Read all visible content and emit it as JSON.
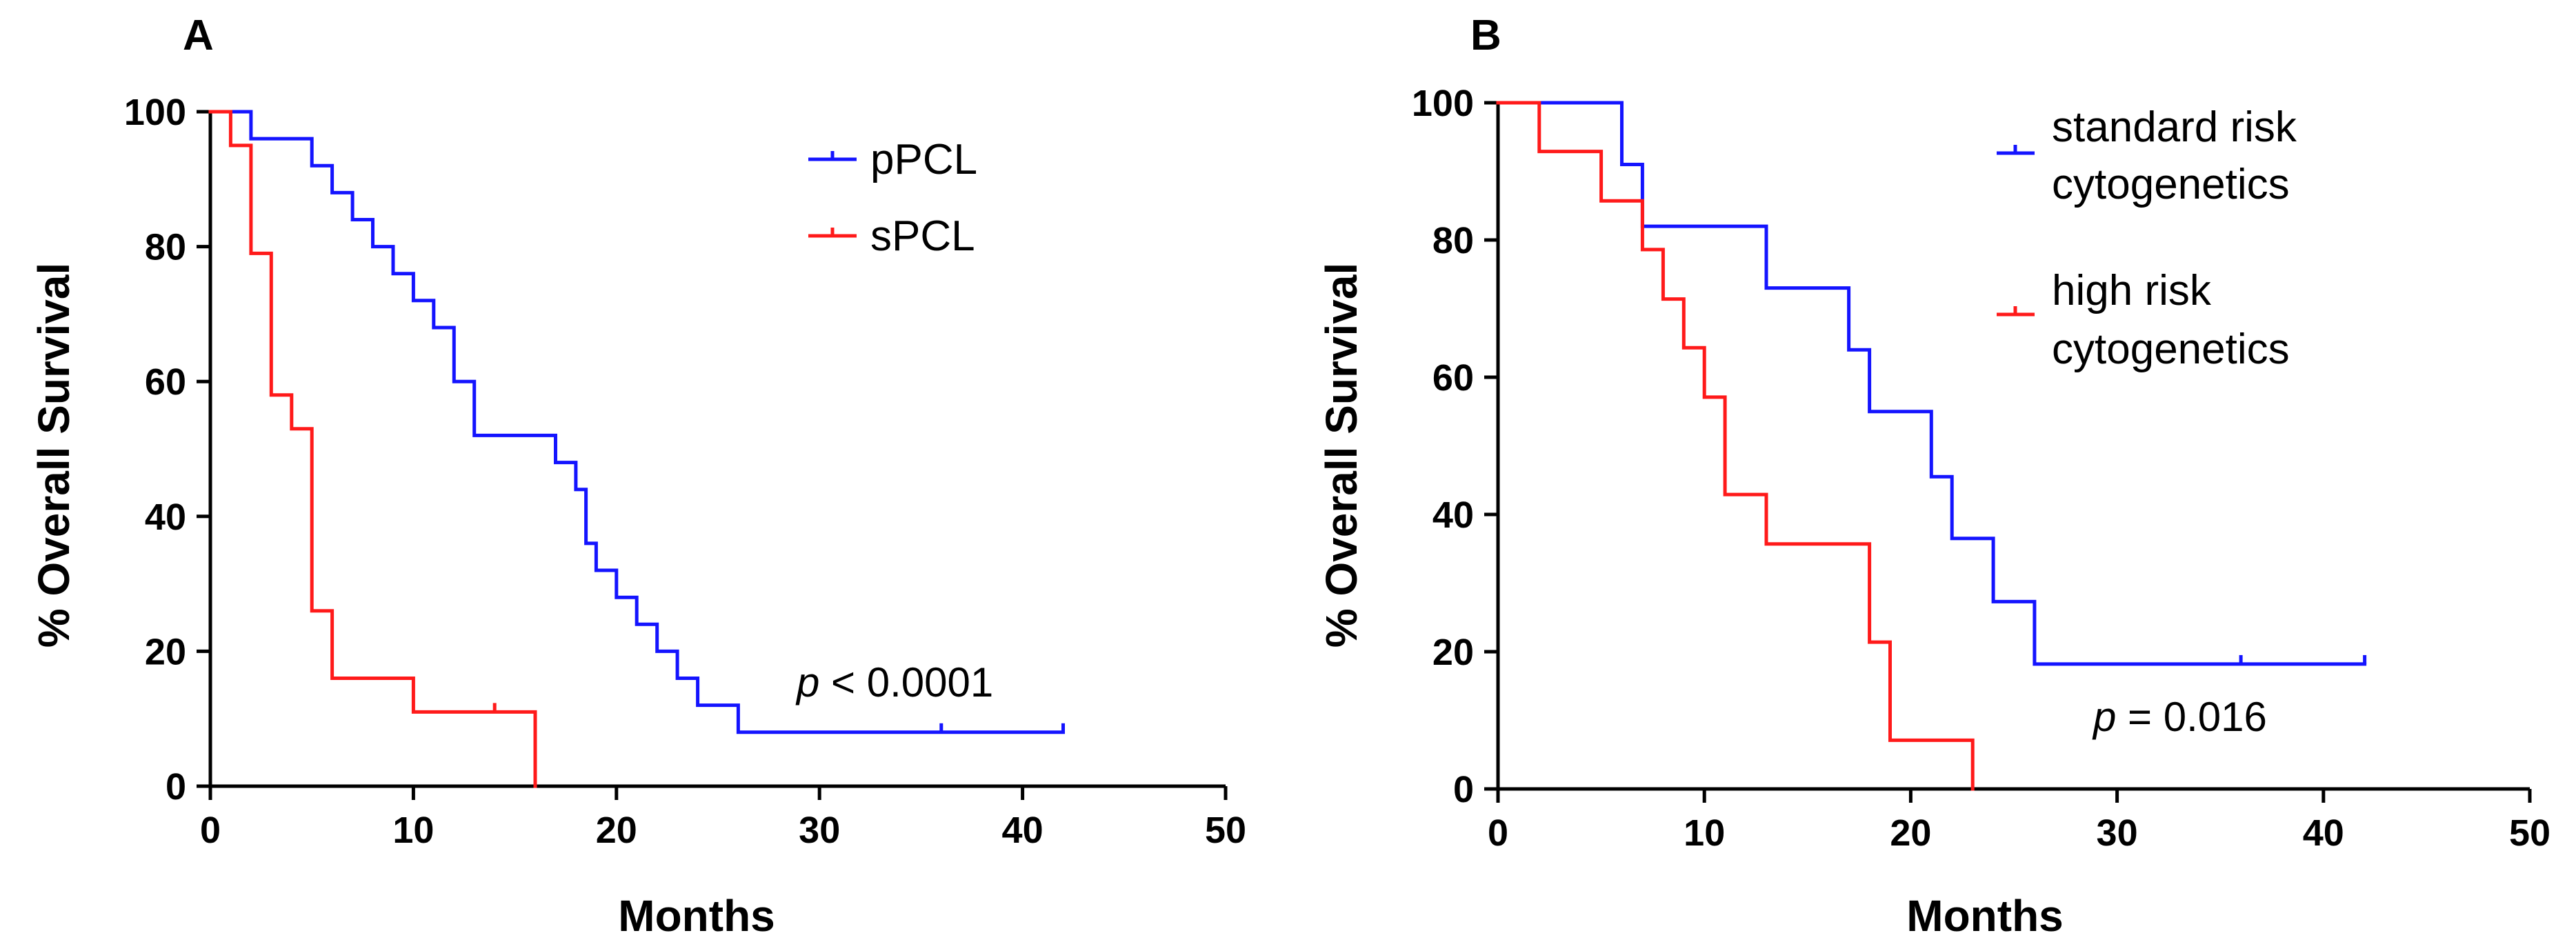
{
  "chart_data": [
    {
      "type": "line",
      "subtype": "kaplan-meier",
      "panel_label": "A",
      "xlabel": "Months",
      "ylabel": "% Overall Survival",
      "xlim": [
        0,
        50
      ],
      "ylim": [
        0,
        100
      ],
      "x_ticks": [
        0,
        10,
        20,
        30,
        40,
        50
      ],
      "y_ticks": [
        0,
        20,
        40,
        60,
        80,
        100
      ],
      "legend_position": "top-right",
      "annotation": {
        "prefix": "p",
        "text": " < 0.0001"
      },
      "series": [
        {
          "name": "pPCL",
          "color": "#1414ff",
          "steps": [
            [
              0,
              100
            ],
            [
              2,
              96
            ],
            [
              5,
              92
            ],
            [
              6,
              88
            ],
            [
              7,
              84
            ],
            [
              8,
              80
            ],
            [
              9,
              76
            ],
            [
              10,
              72
            ],
            [
              11,
              68
            ],
            [
              12,
              60
            ],
            [
              13,
              52
            ],
            [
              17,
              48
            ],
            [
              18,
              44
            ],
            [
              18.5,
              36
            ],
            [
              19,
              32
            ],
            [
              20,
              28
            ],
            [
              21,
              24
            ],
            [
              22,
              20
            ],
            [
              23,
              16
            ],
            [
              24,
              12
            ],
            [
              26,
              8
            ],
            [
              42,
              8
            ]
          ],
          "censored": [
            [
              36,
              8
            ],
            [
              42,
              8
            ]
          ]
        },
        {
          "name": "sPCL",
          "color": "#ff1a1a",
          "steps": [
            [
              0,
              100
            ],
            [
              1,
              95
            ],
            [
              2,
              79
            ],
            [
              3,
              58
            ],
            [
              4,
              53
            ],
            [
              5,
              26
            ],
            [
              6,
              16
            ],
            [
              10,
              11
            ],
            [
              16,
              0
            ]
          ],
          "censored": [
            [
              14,
              11
            ]
          ]
        }
      ]
    },
    {
      "type": "line",
      "subtype": "kaplan-meier",
      "panel_label": "B",
      "xlabel": "Months",
      "ylabel": "% Overall Survival",
      "xlim": [
        0,
        50
      ],
      "ylim": [
        0,
        100
      ],
      "x_ticks": [
        0,
        10,
        20,
        30,
        40,
        50
      ],
      "y_ticks": [
        0,
        20,
        40,
        60,
        80,
        100
      ],
      "legend_position": "top-right",
      "annotation": {
        "prefix": "p",
        "text": " = 0.016"
      },
      "series": [
        {
          "name": "standard risk cytogenetics",
          "label_lines": [
            "standard risk",
            "cytogenetics"
          ],
          "color": "#1414ff",
          "steps": [
            [
              0,
              100
            ],
            [
              6,
              91
            ],
            [
              7,
              82
            ],
            [
              13,
              73
            ],
            [
              17,
              64
            ],
            [
              18,
              55
            ],
            [
              21,
              45.5
            ],
            [
              22,
              36.5
            ],
            [
              24,
              27.3
            ],
            [
              26,
              18.2
            ],
            [
              42,
              18.2
            ]
          ],
          "censored": [
            [
              36,
              18.2
            ],
            [
              42,
              18.2
            ]
          ]
        },
        {
          "name": "high risk cytogenetics",
          "label_lines": [
            "high risk",
            "cytogenetics"
          ],
          "color": "#ff1a1a",
          "steps": [
            [
              0,
              100
            ],
            [
              2,
              92.9
            ],
            [
              5,
              85.7
            ],
            [
              7,
              78.6
            ],
            [
              8,
              71.4
            ],
            [
              9,
              64.3
            ],
            [
              10,
              57.1
            ],
            [
              11,
              42.9
            ],
            [
              13,
              35.7
            ],
            [
              18,
              21.4
            ],
            [
              19,
              7.1
            ],
            [
              23,
              0
            ]
          ],
          "censored": []
        }
      ]
    }
  ]
}
